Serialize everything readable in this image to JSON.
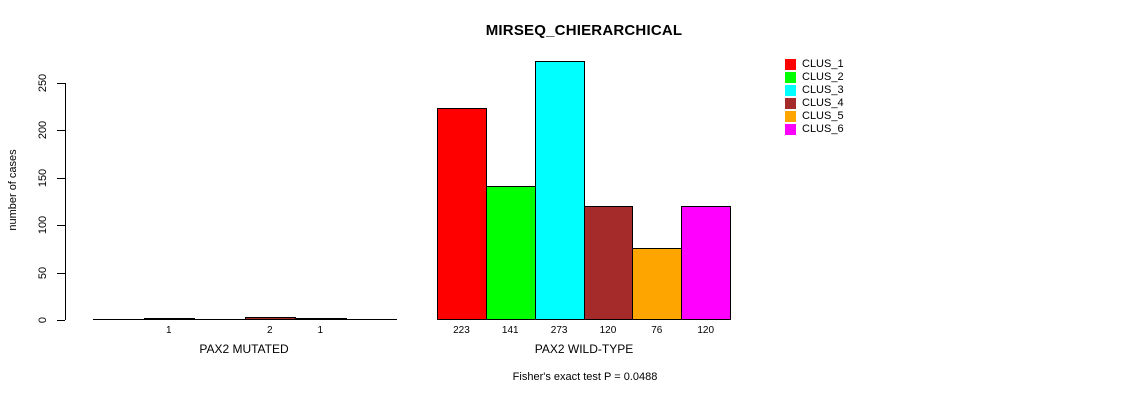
{
  "chart_data": {
    "type": "bar",
    "title": "MIRSEQ_CHIERARCHICAL",
    "xlabel": "",
    "ylabel": "number of cases",
    "ylim": [
      0,
      275
    ],
    "yticks": [
      0,
      50,
      100,
      150,
      200,
      250
    ],
    "grid": false,
    "legend_position": "right",
    "series_labels": [
      "CLUS_1",
      "CLUS_2",
      "CLUS_3",
      "CLUS_4",
      "CLUS_5",
      "CLUS_6"
    ],
    "colors": [
      "#ff0000",
      "#00ff00",
      "#00ffff",
      "#a52a2a",
      "#ffa500",
      "#ff00ff"
    ],
    "groups": [
      {
        "label": "PAX2 MUTATED",
        "values": [
          0,
          1,
          0,
          2,
          1,
          0
        ]
      },
      {
        "label": "PAX2 WILD-TYPE",
        "values": [
          223,
          141,
          273,
          120,
          76,
          120
        ]
      }
    ],
    "bar_value_labels": [
      [
        "1",
        "2",
        "1"
      ],
      [
        "223",
        "141",
        "273",
        "120",
        "76",
        "120"
      ]
    ],
    "annotation": "Fisher's exact test P = 0.0488"
  }
}
